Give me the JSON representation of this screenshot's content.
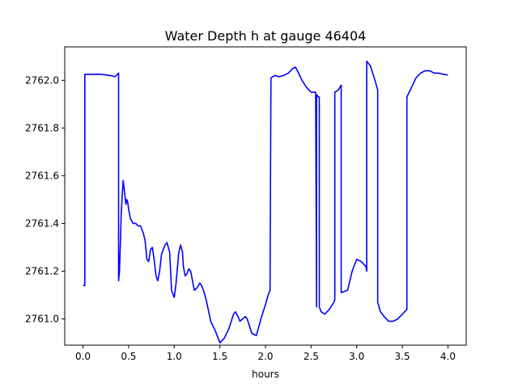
{
  "chart_data": {
    "type": "line",
    "title": "Water Depth h at gauge 46404",
    "xlabel": "hours",
    "ylabel": "",
    "xlim": [
      -0.2,
      4.2
    ],
    "ylim": [
      2760.89,
      2762.14
    ],
    "xticks": [
      0.0,
      0.5,
      1.0,
      1.5,
      2.0,
      2.5,
      3.0,
      3.5,
      4.0
    ],
    "xtick_labels": [
      "0.0",
      "0.5",
      "1.0",
      "1.5",
      "2.0",
      "2.5",
      "3.0",
      "3.5",
      "4.0"
    ],
    "yticks": [
      2761.0,
      2761.2,
      2761.4,
      2761.6,
      2761.8,
      2762.0
    ],
    "ytick_labels": [
      "2761.0",
      "2761.2",
      "2761.4",
      "2761.6",
      "2761.8",
      "2762.0"
    ],
    "grid": false,
    "legend": false,
    "series": [
      {
        "color": "#0000ff",
        "x": [
          0.0,
          0.02,
          0.02,
          0.1,
          0.2,
          0.3,
          0.35,
          0.39,
          0.39,
          0.4,
          0.42,
          0.44,
          0.45,
          0.47,
          0.48,
          0.49,
          0.5,
          0.52,
          0.55,
          0.58,
          0.6,
          0.63,
          0.66,
          0.68,
          0.7,
          0.72,
          0.74,
          0.76,
          0.78,
          0.8,
          0.82,
          0.84,
          0.86,
          0.88,
          0.9,
          0.92,
          0.95,
          0.97,
          1.0,
          1.02,
          1.05,
          1.07,
          1.09,
          1.1,
          1.12,
          1.14,
          1.16,
          1.18,
          1.2,
          1.22,
          1.25,
          1.28,
          1.3,
          1.32,
          1.35,
          1.4,
          1.45,
          1.5,
          1.55,
          1.6,
          1.65,
          1.67,
          1.7,
          1.72,
          1.75,
          1.78,
          1.8,
          1.85,
          1.9,
          1.95,
          2.0,
          2.03,
          2.05,
          2.06,
          2.1,
          2.15,
          2.2,
          2.25,
          2.3,
          2.33,
          2.35,
          2.4,
          2.45,
          2.5,
          2.55,
          2.56,
          2.56,
          2.58,
          2.59,
          2.59,
          2.6,
          2.61,
          2.65,
          2.7,
          2.75,
          2.76,
          2.76,
          2.8,
          2.83,
          2.83,
          2.9,
          2.95,
          3.0,
          3.05,
          3.1,
          3.11,
          3.11,
          3.15,
          3.2,
          3.23,
          3.23,
          3.26,
          3.3,
          3.35,
          3.4,
          3.45,
          3.5,
          3.55,
          3.55,
          3.6,
          3.65,
          3.7,
          3.75,
          3.8,
          3.85,
          3.9,
          3.95,
          4.0
        ],
        "y": [
          2761.14,
          2761.14,
          2762.025,
          2762.025,
          2762.025,
          2762.02,
          2762.015,
          2762.03,
          2761.16,
          2761.2,
          2761.45,
          2761.58,
          2761.55,
          2761.48,
          2761.5,
          2761.49,
          2761.46,
          2761.42,
          2761.4,
          2761.4,
          2761.39,
          2761.39,
          2761.36,
          2761.33,
          2761.25,
          2761.24,
          2761.29,
          2761.3,
          2761.25,
          2761.18,
          2761.16,
          2761.2,
          2761.27,
          2761.29,
          2761.31,
          2761.32,
          2761.28,
          2761.12,
          2761.09,
          2761.15,
          2761.28,
          2761.31,
          2761.28,
          2761.22,
          2761.18,
          2761.19,
          2761.21,
          2761.2,
          2761.16,
          2761.12,
          2761.13,
          2761.15,
          2761.14,
          2761.12,
          2761.08,
          2760.99,
          2760.95,
          2760.9,
          2760.92,
          2760.96,
          2761.02,
          2761.03,
          2761.01,
          2760.99,
          2761.0,
          2761.01,
          2761.0,
          2760.94,
          2760.93,
          2761.0,
          2761.06,
          2761.1,
          2761.12,
          2762.01,
          2762.02,
          2762.015,
          2762.02,
          2762.03,
          2762.05,
          2762.055,
          2762.04,
          2762.0,
          2761.97,
          2761.95,
          2761.95,
          2761.05,
          2761.94,
          2761.93,
          2761.93,
          2761.05,
          2761.04,
          2761.03,
          2761.02,
          2761.04,
          2761.07,
          2761.08,
          2761.95,
          2761.96,
          2761.98,
          2761.11,
          2761.12,
          2761.2,
          2761.25,
          2761.24,
          2761.22,
          2761.2,
          2762.08,
          2762.06,
          2762.0,
          2761.96,
          2761.07,
          2761.03,
          2761.01,
          2760.99,
          2760.99,
          2761.0,
          2761.02,
          2761.04,
          2761.93,
          2761.97,
          2762.01,
          2762.03,
          2762.04,
          2762.04,
          2762.03,
          2762.03,
          2762.025,
          2762.022
        ]
      }
    ]
  }
}
